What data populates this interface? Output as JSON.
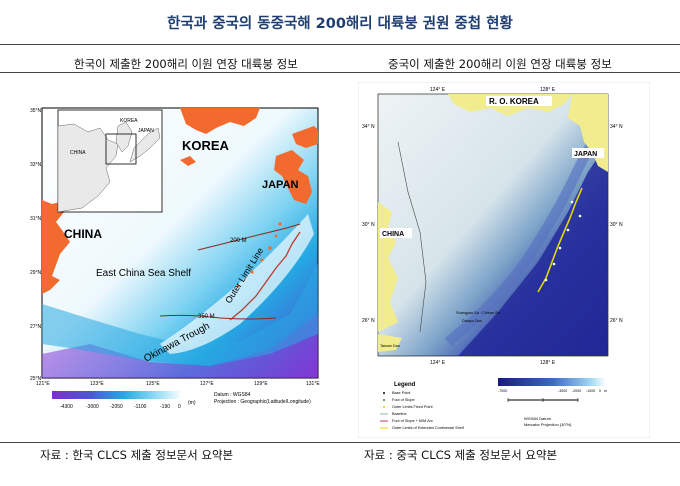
{
  "title": "한국과 중국의 동중국해 200해리 대륙붕 권원 중첩 현황",
  "left": {
    "subtitle": "한국이 제출한 200해리 이원 연장 대륙붕 정보",
    "source": "자료 : 한국 CLCS 제출 정보문서 요약본",
    "labels": {
      "korea": "KOREA",
      "japan": "JAPAN",
      "china": "CHINA",
      "shelf": "East China Sea Shelf",
      "outer_limit": "Outer Limit Line",
      "trough": "Okinawa Trough",
      "m200": "200 M",
      "m350": "350 M",
      "inset_korea": "KOREA",
      "inset_japan": "JAPAN",
      "inset_china": "CHINA",
      "datum": "Datum : WGS84",
      "projection": "Projection : Geographic(Latitude/Longitude)",
      "unit": "(m)"
    },
    "lat_ticks": [
      "35°N",
      "33°N",
      "31°N",
      "29°N",
      "27°N",
      "25°N"
    ],
    "lon_ticks": [
      "121°E",
      "123°E",
      "125°E",
      "127°E",
      "129°E",
      "131°E"
    ],
    "depth_ticks": [
      "-4300",
      "-3000",
      "-2050",
      "-1100",
      "-190",
      "0"
    ],
    "colors": {
      "land": "#f26a2e",
      "sea_light": "#d9f3fb",
      "sea_mid": "#2fb4e6",
      "deep": "#7b2fd0"
    }
  },
  "right": {
    "subtitle": "중국이 제출한 200해리 이원 연장 대륙붕 정보",
    "source": "자료 : 중국 CLCS 제출 정보문서 요약본",
    "labels": {
      "rok": "R. O. KOREA",
      "japan": "JAPAN",
      "china": "CHINA",
      "legend_title": "Legend",
      "datum": "WGS84 Datum",
      "projection": "Mercator Projection (30°N)",
      "place1": "Shangyao Sa · Chisan Sa",
      "place2": "Diaoyu Dao",
      "place3": "Taiwan Dao"
    },
    "legend_items": [
      "Base Point",
      "Foot of Slope",
      "Outer Limits Fixed Point",
      "Baseline",
      "Foot of Slope + 60M Arc",
      "Outer Limits of Extended Continental Shelf"
    ],
    "lat_ticks": [
      "34° N",
      "30° N",
      "26° N"
    ],
    "lon_ticks": [
      "124° E",
      "128° E"
    ],
    "depth_ticks": [
      "-7000",
      "-3000",
      "-2000",
      "-1000",
      "0",
      "m"
    ],
    "colors": {
      "land": "#f1ec8e",
      "shelf": "#dde9ee",
      "deep": "#1d1e8c"
    }
  }
}
